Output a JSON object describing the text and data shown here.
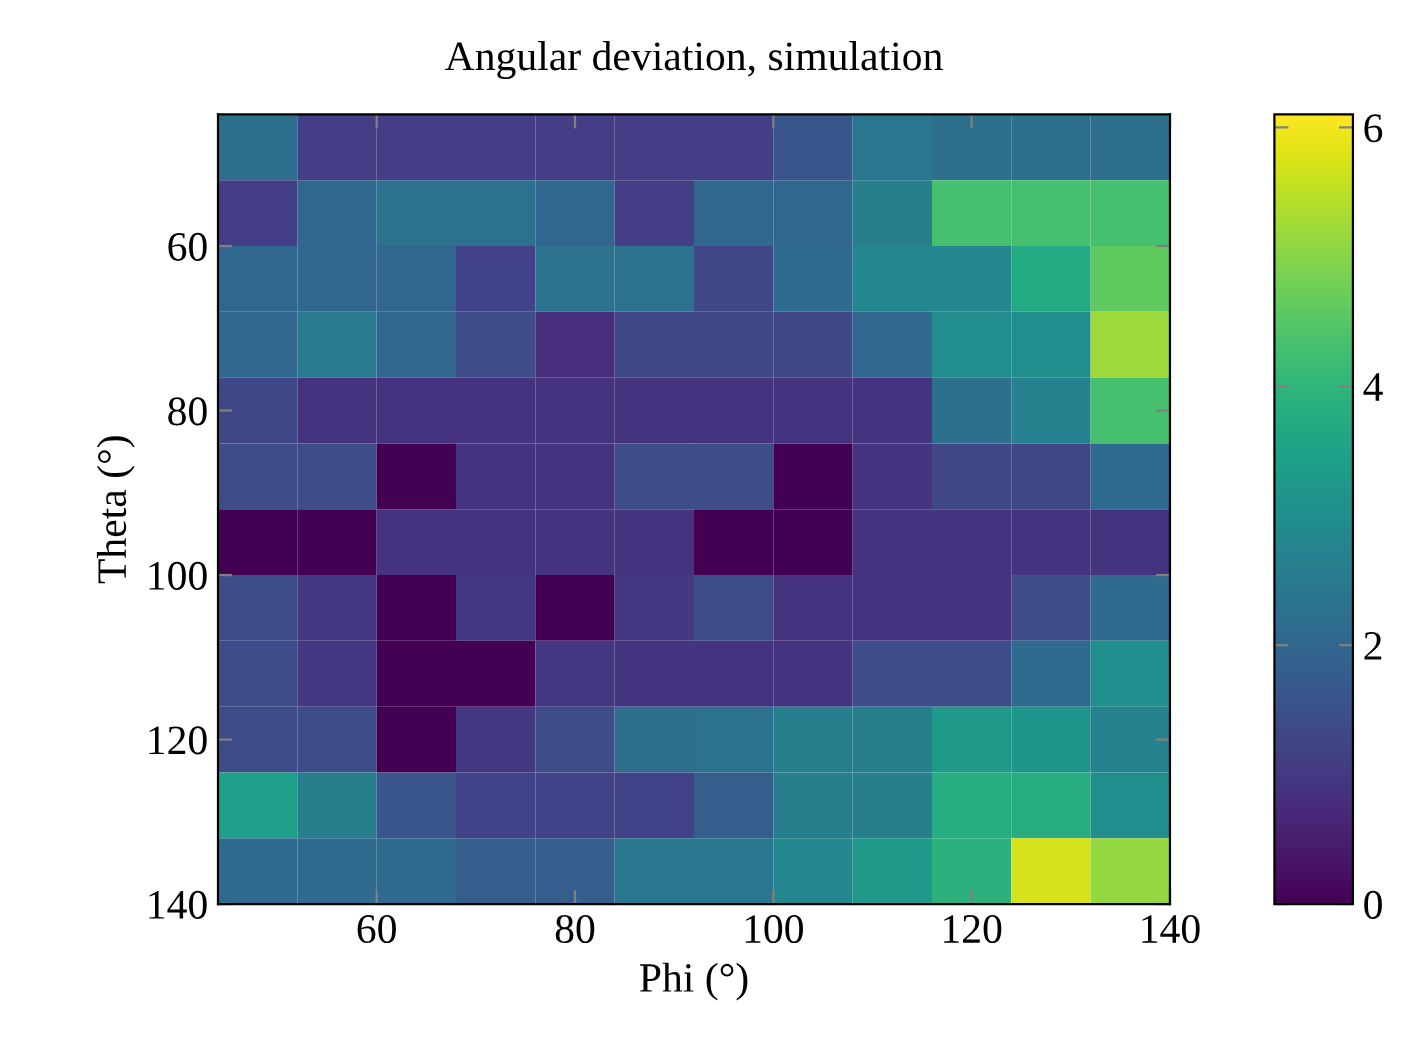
{
  "chart_data": {
    "type": "heatmap",
    "title": "Angular deviation, simulation",
    "xlabel": "Phi (°)",
    "ylabel": "Theta (°)",
    "x": [
      48,
      56,
      64,
      72,
      80,
      88,
      96,
      104,
      112,
      120,
      128,
      136
    ],
    "y": [
      48,
      56,
      64,
      72,
      80,
      88,
      96,
      104,
      112,
      120,
      128,
      136
    ],
    "cells": [
      [
        2.2,
        1.1,
        1.1,
        1.1,
        1.1,
        1.1,
        1.1,
        1.6,
        2.4,
        2.2,
        2.2,
        2.2
      ],
      [
        1.1,
        2.0,
        2.3,
        2.3,
        2.0,
        1.1,
        2.0,
        2.0,
        2.6,
        4.3,
        4.3,
        4.3
      ],
      [
        2.0,
        2.0,
        2.0,
        1.2,
        2.3,
        2.3,
        1.3,
        2.1,
        2.8,
        2.8,
        3.7,
        4.6
      ],
      [
        2.0,
        2.5,
        2.0,
        1.4,
        0.8,
        1.3,
        1.3,
        1.3,
        2.0,
        3.0,
        3.0,
        5.2
      ],
      [
        1.3,
        0.9,
        0.9,
        0.9,
        0.9,
        0.9,
        0.9,
        0.9,
        0.9,
        2.2,
        2.7,
        4.3
      ],
      [
        1.4,
        1.4,
        0,
        0.9,
        0.9,
        1.4,
        1.4,
        0,
        0.9,
        1.3,
        1.3,
        2.1
      ],
      [
        0,
        0,
        0.9,
        0.9,
        0.9,
        0.9,
        0,
        0,
        0.9,
        0.9,
        0.9,
        0.9
      ],
      [
        1.4,
        1.0,
        0,
        1.0,
        0,
        1.0,
        1.4,
        0.9,
        0.9,
        0.9,
        1.4,
        2.1
      ],
      [
        1.4,
        1.0,
        0,
        0,
        1.0,
        0.95,
        0.9,
        0.9,
        1.4,
        1.4,
        2.1,
        3.0
      ],
      [
        1.4,
        1.4,
        0,
        1.0,
        1.4,
        2.2,
        2.3,
        2.6,
        2.6,
        3.3,
        3.2,
        2.7
      ],
      [
        3.4,
        2.6,
        1.6,
        1.2,
        1.2,
        1.2,
        1.8,
        2.6,
        2.6,
        3.8,
        3.8,
        3.0
      ],
      [
        2.1,
        2.1,
        2.1,
        1.8,
        1.8,
        2.4,
        2.4,
        2.8,
        3.3,
        3.9,
        5.7,
        5.1
      ]
    ],
    "xlim": [
      44,
      140
    ],
    "ylim": [
      140,
      44
    ],
    "xticks": [
      60,
      80,
      100,
      120,
      140
    ],
    "yticks": [
      60,
      80,
      100,
      120,
      140
    ],
    "clim": [
      0,
      6.1
    ],
    "cticks": [
      0,
      2,
      4,
      6
    ],
    "grid": false
  }
}
